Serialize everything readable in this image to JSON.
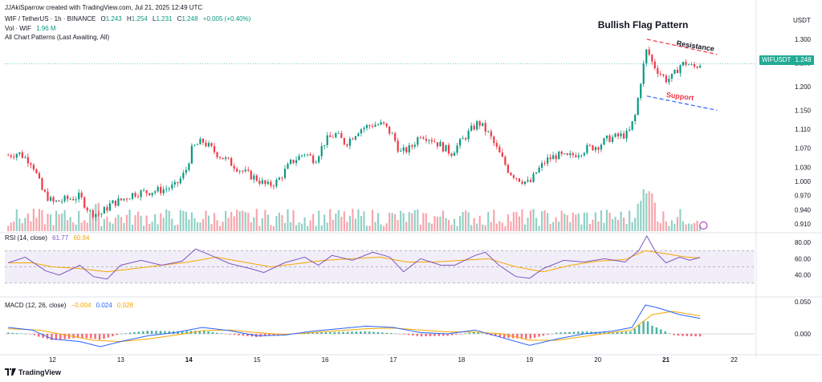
{
  "header": {
    "author_line": "JJAkiSparrow created with TradingView.com, Jul 21, 2025 12:49 UTC",
    "symbol": "WIF / TetherUS · 1h · BINANCE",
    "ohlc": {
      "o_label": "O",
      "o": "1.243",
      "h_label": "H",
      "h": "1.254",
      "l_label": "L",
      "l": "1.231",
      "c_label": "C",
      "c": "1.248",
      "change": "+0.005 (+0.40%)"
    },
    "volume_label": "Vol · WIF",
    "volume_value": "1.96 M",
    "indicator_label": "All Chart Patterns (Last Awaiting, All)",
    "currency": "USDT"
  },
  "price_tag": {
    "symbol": "WIFUSDT",
    "price": "1.248"
  },
  "annotations": {
    "title": "Bullish Flag Pattern",
    "resistance": "Resistance",
    "support": "Support"
  },
  "rsi": {
    "label": "RSI (14, close)",
    "v1": "61.77",
    "v2": "60.94"
  },
  "macd": {
    "label": "MACD (12, 26, close)",
    "v1": "−0.004",
    "v2": "0.024",
    "v3": "0.028"
  },
  "branding": "TradingView",
  "colors": {
    "up": "#089981",
    "down": "#f23645",
    "rsi": "#7e57c2",
    "signal": "#f7a600",
    "macd_line": "#2962ff",
    "resistance": "#f23645",
    "support": "#2962ff"
  },
  "chart_data": [
    {
      "type": "candlestick",
      "title": "WIF / TetherUS · 1h · BINANCE",
      "x_ticks": [
        "12",
        "13",
        "14",
        "15",
        "16",
        "17",
        "18",
        "19",
        "20",
        "21",
        "22"
      ],
      "y_ticks": [
        "1.300",
        "1.250",
        "1.200",
        "1.150",
        "1.110",
        "1.070",
        "1.030",
        "1.000",
        "0.970",
        "0.940",
        "0.910"
      ],
      "ylabel": "USDT",
      "x_range": [
        11.3,
        22.3
      ],
      "y_range": [
        0.895,
        1.315
      ],
      "approx_close_path": [
        [
          11.35,
          1.055
        ],
        [
          11.5,
          1.06
        ],
        [
          11.7,
          1.04
        ],
        [
          11.85,
          0.98
        ],
        [
          12.0,
          0.955
        ],
        [
          12.2,
          0.962
        ],
        [
          12.4,
          0.968
        ],
        [
          12.55,
          0.935
        ],
        [
          12.7,
          0.93
        ],
        [
          12.85,
          0.952
        ],
        [
          13.0,
          0.96
        ],
        [
          13.2,
          0.975
        ],
        [
          13.4,
          0.978
        ],
        [
          13.6,
          0.982
        ],
        [
          13.8,
          0.99
        ],
        [
          13.95,
          1.02
        ],
        [
          14.05,
          1.07
        ],
        [
          14.2,
          1.085
        ],
        [
          14.4,
          1.06
        ],
        [
          14.6,
          1.04
        ],
        [
          14.8,
          1.02
        ],
        [
          15.0,
          1.005
        ],
        [
          15.15,
          0.99
        ],
        [
          15.3,
          1.0
        ],
        [
          15.5,
          1.04
        ],
        [
          15.7,
          1.06
        ],
        [
          15.85,
          1.045
        ],
        [
          16.0,
          1.085
        ],
        [
          16.15,
          1.1
        ],
        [
          16.3,
          1.08
        ],
        [
          16.5,
          1.11
        ],
        [
          16.7,
          1.12
        ],
        [
          16.85,
          1.12
        ],
        [
          17.0,
          1.095
        ],
        [
          17.1,
          1.06
        ],
        [
          17.25,
          1.07
        ],
        [
          17.4,
          1.1
        ],
        [
          17.55,
          1.09
        ],
        [
          17.7,
          1.075
        ],
        [
          17.85,
          1.06
        ],
        [
          18.0,
          1.085
        ],
        [
          18.15,
          1.11
        ],
        [
          18.25,
          1.125
        ],
        [
          18.4,
          1.1
        ],
        [
          18.55,
          1.06
        ],
        [
          18.7,
          1.02
        ],
        [
          18.85,
          1.005
        ],
        [
          19.0,
          0.995
        ],
        [
          19.1,
          1.02
        ],
        [
          19.25,
          1.045
        ],
        [
          19.4,
          1.055
        ],
        [
          19.55,
          1.05
        ],
        [
          19.7,
          1.06
        ],
        [
          19.85,
          1.07
        ],
        [
          20.0,
          1.075
        ],
        [
          20.15,
          1.09
        ],
        [
          20.3,
          1.095
        ],
        [
          20.45,
          1.1
        ],
        [
          20.55,
          1.14
        ],
        [
          20.65,
          1.23
        ],
        [
          20.72,
          1.28
        ],
        [
          20.8,
          1.25
        ],
        [
          20.9,
          1.23
        ],
        [
          21.0,
          1.215
        ],
        [
          21.1,
          1.22
        ],
        [
          21.2,
          1.245
        ],
        [
          21.3,
          1.25
        ],
        [
          21.4,
          1.24
        ],
        [
          21.5,
          1.248
        ]
      ]
    },
    {
      "type": "line",
      "title": "RSI (14, close)",
      "y_ticks": [
        "80.00",
        "60.00",
        "40.00"
      ],
      "y_range": [
        15,
        90
      ],
      "series": [
        {
          "name": "",
          "color": "#7e57c2",
          "points": [
            [
              11.35,
              55
            ],
            [
              11.6,
              62
            ],
            [
              11.9,
              45
            ],
            [
              12.1,
              40
            ],
            [
              12.4,
              52
            ],
            [
              12.6,
              38
            ],
            [
              12.8,
              35
            ],
            [
              13.0,
              52
            ],
            [
              13.3,
              58
            ],
            [
              13.6,
              52
            ],
            [
              13.9,
              57
            ],
            [
              14.1,
              72
            ],
            [
              14.3,
              65
            ],
            [
              14.6,
              54
            ],
            [
              14.9,
              48
            ],
            [
              15.1,
              43
            ],
            [
              15.4,
              55
            ],
            [
              15.7,
              62
            ],
            [
              15.9,
              52
            ],
            [
              16.1,
              64
            ],
            [
              16.4,
              58
            ],
            [
              16.7,
              68
            ],
            [
              16.95,
              62
            ],
            [
              17.15,
              44
            ],
            [
              17.4,
              60
            ],
            [
              17.7,
              52
            ],
            [
              17.9,
              52
            ],
            [
              18.2,
              64
            ],
            [
              18.35,
              68
            ],
            [
              18.55,
              52
            ],
            [
              18.8,
              38
            ],
            [
              19.0,
              36
            ],
            [
              19.2,
              48
            ],
            [
              19.5,
              58
            ],
            [
              19.8,
              56
            ],
            [
              20.1,
              60
            ],
            [
              20.4,
              56
            ],
            [
              20.6,
              70
            ],
            [
              20.72,
              88
            ],
            [
              20.85,
              68
            ],
            [
              21.0,
              55
            ],
            [
              21.2,
              62
            ],
            [
              21.35,
              58
            ],
            [
              21.5,
              61.77
            ]
          ]
        },
        {
          "name": "",
          "color": "#f7a600",
          "points": [
            [
              11.35,
              55
            ],
            [
              11.7,
              55
            ],
            [
              12.0,
              50
            ],
            [
              12.4,
              48
            ],
            [
              12.8,
              44
            ],
            [
              13.2,
              48
            ],
            [
              13.6,
              52
            ],
            [
              14.0,
              56
            ],
            [
              14.4,
              62
            ],
            [
              14.8,
              56
            ],
            [
              15.2,
              50
            ],
            [
              15.6,
              54
            ],
            [
              16.0,
              58
            ],
            [
              16.4,
              60
            ],
            [
              16.8,
              62
            ],
            [
              17.2,
              56
            ],
            [
              17.6,
              56
            ],
            [
              18.0,
              58
            ],
            [
              18.4,
              60
            ],
            [
              18.8,
              50
            ],
            [
              19.2,
              44
            ],
            [
              19.6,
              52
            ],
            [
              20.0,
              57
            ],
            [
              20.4,
              59
            ],
            [
              20.7,
              70
            ],
            [
              21.0,
              66
            ],
            [
              21.3,
              62
            ],
            [
              21.5,
              60.94
            ]
          ]
        }
      ]
    },
    {
      "type": "line",
      "title": "MACD (12, 26, close)",
      "y_ticks": [
        "0.050",
        "0.000"
      ],
      "y_range": [
        -0.03,
        0.055
      ],
      "series": [
        {
          "name": "",
          "color": "#2962ff",
          "points": [
            [
              11.35,
              0.01
            ],
            [
              11.7,
              0.006
            ],
            [
              12.0,
              -0.008
            ],
            [
              12.4,
              -0.012
            ],
            [
              12.7,
              -0.02
            ],
            [
              13.0,
              -0.012
            ],
            [
              13.4,
              -0.003
            ],
            [
              13.8,
              0.002
            ],
            [
              14.2,
              0.01
            ],
            [
              14.6,
              0.005
            ],
            [
              15.0,
              -0.003
            ],
            [
              15.4,
              -0.002
            ],
            [
              15.8,
              0.004
            ],
            [
              16.2,
              0.008
            ],
            [
              16.6,
              0.012
            ],
            [
              17.0,
              0.01
            ],
            [
              17.4,
              0.002
            ],
            [
              17.8,
              0.0
            ],
            [
              18.2,
              0.006
            ],
            [
              18.6,
              -0.006
            ],
            [
              19.0,
              -0.018
            ],
            [
              19.4,
              -0.008
            ],
            [
              19.8,
              0.0
            ],
            [
              20.2,
              0.004
            ],
            [
              20.5,
              0.01
            ],
            [
              20.7,
              0.045
            ],
            [
              20.9,
              0.04
            ],
            [
              21.2,
              0.03
            ],
            [
              21.5,
              0.024
            ]
          ]
        },
        {
          "name": "",
          "color": "#f7a600",
          "points": [
            [
              11.35,
              0.008
            ],
            [
              11.8,
              0.006
            ],
            [
              12.2,
              -0.002
            ],
            [
              12.6,
              -0.01
            ],
            [
              13.0,
              -0.012
            ],
            [
              13.4,
              -0.008
            ],
            [
              13.8,
              -0.002
            ],
            [
              14.2,
              0.005
            ],
            [
              14.6,
              0.006
            ],
            [
              15.0,
              0.002
            ],
            [
              15.4,
              -0.001
            ],
            [
              15.8,
              0.002
            ],
            [
              16.2,
              0.005
            ],
            [
              16.6,
              0.008
            ],
            [
              17.0,
              0.009
            ],
            [
              17.4,
              0.006
            ],
            [
              17.8,
              0.003
            ],
            [
              18.2,
              0.003
            ],
            [
              18.6,
              0.0
            ],
            [
              19.0,
              -0.01
            ],
            [
              19.4,
              -0.01
            ],
            [
              19.8,
              -0.004
            ],
            [
              20.2,
              0.002
            ],
            [
              20.5,
              0.006
            ],
            [
              20.8,
              0.03
            ],
            [
              21.1,
              0.035
            ],
            [
              21.5,
              0.028
            ]
          ]
        }
      ]
    }
  ]
}
